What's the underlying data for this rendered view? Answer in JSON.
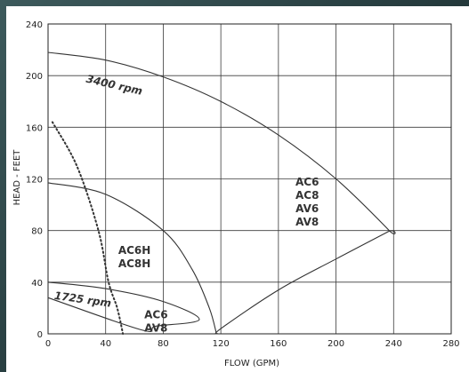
{
  "chart_data": {
    "type": "line",
    "xlabel": "FLOW (GPM)",
    "ylabel": "HEAD - FEET",
    "xlim": [
      0,
      280
    ],
    "ylim": [
      0,
      240
    ],
    "x_ticks": [
      "0",
      "40",
      "80",
      "120",
      "160",
      "200",
      "240",
      "280"
    ],
    "y_ticks": [
      "0",
      "40",
      "80",
      "120",
      "160",
      "200",
      "240"
    ],
    "grid": true,
    "curves": [
      {
        "id": "curve-3400",
        "style": "solid",
        "points": [
          [
            0,
            218
          ],
          [
            40,
            212
          ],
          [
            80,
            199
          ],
          [
            120,
            180
          ],
          [
            160,
            154
          ],
          [
            200,
            120
          ],
          [
            237,
            80
          ],
          [
            236,
            79
          ],
          [
            200,
            58
          ],
          [
            160,
            34
          ],
          [
            120,
            4
          ],
          [
            118,
            0
          ]
        ]
      },
      {
        "id": "curve-1725",
        "style": "solid",
        "points": [
          [
            0,
            40
          ],
          [
            40,
            35
          ],
          [
            80,
            25
          ],
          [
            105,
            11
          ],
          [
            75,
            6
          ],
          [
            65,
            3
          ],
          [
            0,
            28
          ]
        ]
      },
      {
        "id": "curve-mid",
        "style": "solid",
        "points": [
          [
            0,
            117
          ],
          [
            40,
            108
          ],
          [
            80,
            80
          ],
          [
            100,
            50
          ],
          [
            112,
            20
          ],
          [
            117,
            0
          ]
        ]
      },
      {
        "id": "curve-npsh",
        "style": "dotted",
        "points": [
          [
            3,
            164
          ],
          [
            20,
            130
          ],
          [
            35,
            80
          ],
          [
            42,
            40
          ],
          [
            48,
            20
          ],
          [
            52,
            0
          ]
        ]
      }
    ],
    "annotations": [
      {
        "id": "label-3400",
        "text": "3400 rpm",
        "x": 26,
        "y": 195,
        "angle": 13
      },
      {
        "id": "label-1725",
        "text": "1725 rpm",
        "x": 4,
        "y": 27,
        "angle": 8
      },
      {
        "id": "label-ac6h",
        "lines": [
          "AC6H",
          "AC8H"
        ],
        "x": 60,
        "y": 62
      },
      {
        "id": "label-ac6-av8",
        "lines": [
          "AC6",
          "AV8"
        ],
        "x": 75,
        "y": 12
      },
      {
        "id": "label-big",
        "lines": [
          "AC6",
          "AC8",
          "AV6",
          "AV8"
        ],
        "x": 180,
        "y": 115
      }
    ]
  },
  "colors": {
    "frame": "#2f4a4c",
    "grid": "#3a3a3a",
    "curve": "#333333"
  }
}
